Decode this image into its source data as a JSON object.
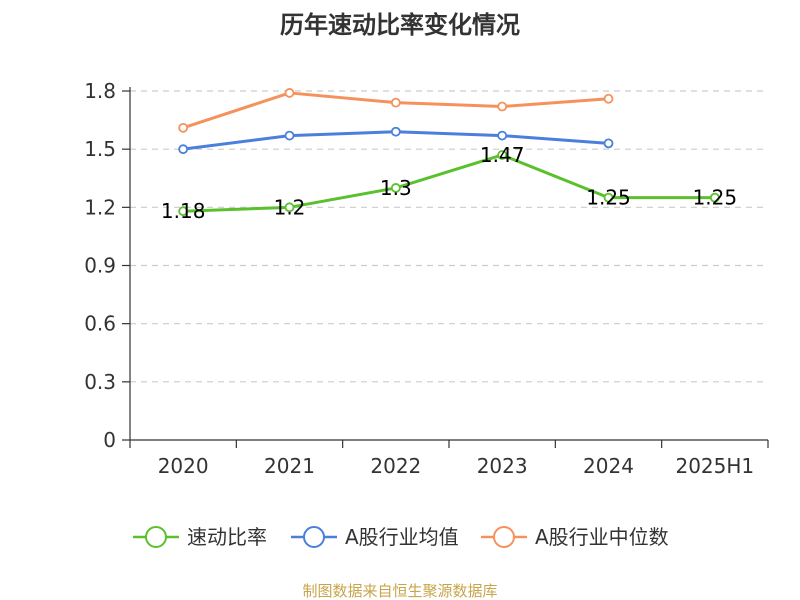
{
  "chart_data": {
    "type": "line",
    "title": "历年速动比率变化情况",
    "categories": [
      "2020",
      "2021",
      "2022",
      "2023",
      "2024",
      "2025H1"
    ],
    "y_ticks": [
      "0",
      "0.3",
      "0.6",
      "0.9",
      "1.2",
      "1.5",
      "1.8"
    ],
    "ylim": [
      0,
      1.8
    ],
    "grid": true,
    "legend_position": "bottom",
    "series": [
      {
        "name": "速动比率",
        "color": "#5bc02e",
        "values": [
          1.18,
          1.2,
          1.3,
          1.47,
          1.25,
          1.25
        ],
        "data_labels": [
          "1.18",
          "1.2",
          "1.3",
          "1.47",
          "1.25",
          "1.25"
        ]
      },
      {
        "name": "A股行业均值",
        "color": "#4a7fdc",
        "values": [
          1.5,
          1.57,
          1.59,
          1.57,
          1.53,
          null
        ]
      },
      {
        "name": "A股行业中位数",
        "color": "#f5925c",
        "values": [
          1.61,
          1.79,
          1.74,
          1.72,
          1.76,
          null
        ]
      }
    ]
  },
  "source": "制图数据来自恒生聚源数据库"
}
